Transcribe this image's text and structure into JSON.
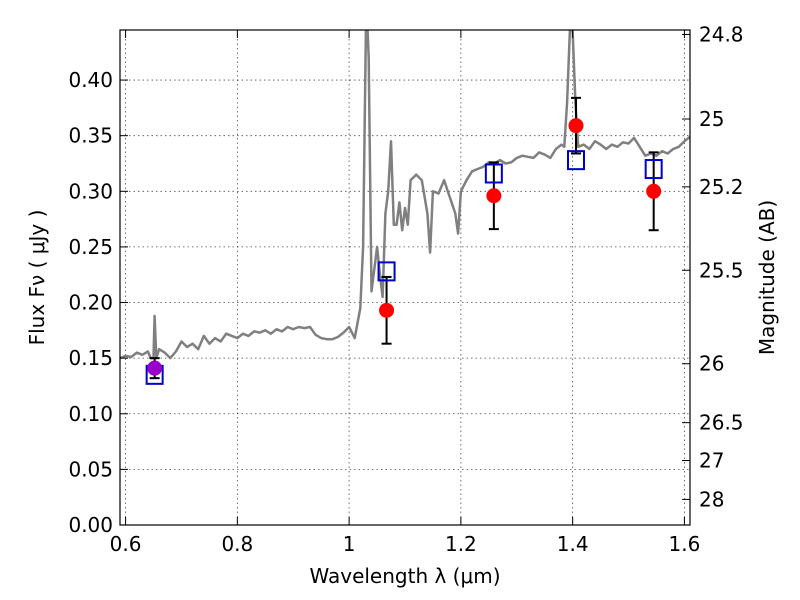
{
  "chart_data": {
    "type": "scatter",
    "xlabel": "Wavelength  λ (μm)",
    "ylabel": "Flux  Fν  ( μJy )",
    "ylabel_right": "Magnitude (AB)",
    "xlim": [
      0.59,
      1.61
    ],
    "ylim": [
      0.0,
      0.445
    ],
    "grid": true,
    "x_ticks": [
      0.6,
      0.8,
      1.0,
      1.2,
      1.4,
      1.6
    ],
    "x_tick_labels": [
      "0.6",
      "0.8",
      "1",
      "1.2",
      "1.4",
      "1.6"
    ],
    "y_ticks": [
      0.0,
      0.05,
      0.1,
      0.15,
      0.2,
      0.25,
      0.3,
      0.35,
      0.4
    ],
    "y_tick_labels": [
      "0.00",
      "0.05",
      "0.10",
      "0.15",
      "0.20",
      "0.25",
      "0.30",
      "0.35",
      "0.40"
    ],
    "right_ticks": [
      {
        "label": "24.8",
        "flux": 0.441
      },
      {
        "label": "25",
        "flux": 0.365
      },
      {
        "label": "25.2",
        "flux": 0.304
      },
      {
        "label": "25.5",
        "flux": 0.229
      },
      {
        "label": "26",
        "flux": 0.145
      },
      {
        "label": "26.5",
        "flux": 0.092
      },
      {
        "label": "27",
        "flux": 0.058
      },
      {
        "label": "28",
        "flux": 0.023
      }
    ],
    "colors": {
      "spectrum": "#808080",
      "observed": "#ff0000",
      "model": "#0000cc",
      "purple_point": "#9900cc",
      "errorbar": "#000000"
    },
    "series": [
      {
        "kind": "spectrum",
        "x": [
          0.59,
          0.6,
          0.61,
          0.62,
          0.63,
          0.64,
          0.645,
          0.65,
          0.652,
          0.655,
          0.66,
          0.67,
          0.68,
          0.69,
          0.7,
          0.71,
          0.72,
          0.73,
          0.74,
          0.75,
          0.76,
          0.77,
          0.78,
          0.79,
          0.8,
          0.81,
          0.82,
          0.83,
          0.84,
          0.85,
          0.86,
          0.87,
          0.88,
          0.89,
          0.9,
          0.91,
          0.92,
          0.93,
          0.94,
          0.95,
          0.96,
          0.97,
          0.98,
          0.99,
          1.0,
          1.01,
          1.02,
          1.025,
          1.03,
          1.033,
          1.035,
          1.04,
          1.045,
          1.05,
          1.055,
          1.06,
          1.065,
          1.07,
          1.075,
          1.08,
          1.085,
          1.09,
          1.095,
          1.1,
          1.105,
          1.11,
          1.12,
          1.13,
          1.14,
          1.145,
          1.15,
          1.16,
          1.17,
          1.18,
          1.19,
          1.195,
          1.2,
          1.21,
          1.22,
          1.23,
          1.24,
          1.25,
          1.26,
          1.27,
          1.28,
          1.29,
          1.3,
          1.31,
          1.32,
          1.33,
          1.34,
          1.35,
          1.36,
          1.37,
          1.38,
          1.385,
          1.39,
          1.395,
          1.4,
          1.405,
          1.41,
          1.42,
          1.43,
          1.44,
          1.45,
          1.46,
          1.47,
          1.48,
          1.49,
          1.5,
          1.51,
          1.52,
          1.53,
          1.54,
          1.55,
          1.56,
          1.57,
          1.58,
          1.59,
          1.6,
          1.61
        ],
        "y": [
          0.15,
          0.152,
          0.151,
          0.155,
          0.153,
          0.156,
          0.15,
          0.15,
          0.188,
          0.15,
          0.158,
          0.155,
          0.15,
          0.156,
          0.165,
          0.16,
          0.163,
          0.158,
          0.17,
          0.163,
          0.168,
          0.165,
          0.172,
          0.17,
          0.168,
          0.172,
          0.17,
          0.174,
          0.173,
          0.175,
          0.172,
          0.176,
          0.174,
          0.178,
          0.176,
          0.178,
          0.177,
          0.178,
          0.171,
          0.168,
          0.167,
          0.167,
          0.169,
          0.173,
          0.178,
          0.168,
          0.195,
          0.25,
          0.445,
          0.445,
          0.42,
          0.21,
          0.23,
          0.25,
          0.225,
          0.205,
          0.28,
          0.3,
          0.345,
          0.27,
          0.27,
          0.29,
          0.265,
          0.285,
          0.27,
          0.31,
          0.315,
          0.31,
          0.28,
          0.245,
          0.3,
          0.298,
          0.31,
          0.295,
          0.28,
          0.262,
          0.3,
          0.31,
          0.318,
          0.32,
          0.322,
          0.326,
          0.325,
          0.328,
          0.325,
          0.326,
          0.33,
          0.332,
          0.331,
          0.33,
          0.335,
          0.333,
          0.33,
          0.338,
          0.342,
          0.34,
          0.38,
          0.445,
          0.445,
          0.38,
          0.34,
          0.342,
          0.338,
          0.345,
          0.342,
          0.338,
          0.342,
          0.34,
          0.344,
          0.343,
          0.348,
          0.34,
          0.332,
          0.334,
          0.332,
          0.336,
          0.334,
          0.338,
          0.34,
          0.345,
          0.349
        ]
      },
      {
        "kind": "observed",
        "x": [
          1.067,
          1.259,
          1.406,
          1.545
        ],
        "y": [
          0.193,
          0.296,
          0.359,
          0.3
        ],
        "err": [
          0.03,
          0.03,
          0.025,
          0.035
        ]
      },
      {
        "kind": "purple",
        "x": [
          0.652
        ],
        "y": [
          0.141
        ],
        "err": [
          0.009
        ]
      },
      {
        "kind": "model",
        "x": [
          0.652,
          1.067,
          1.259,
          1.406,
          1.545
        ],
        "y": [
          0.135,
          0.228,
          0.316,
          0.328,
          0.32
        ]
      }
    ]
  }
}
